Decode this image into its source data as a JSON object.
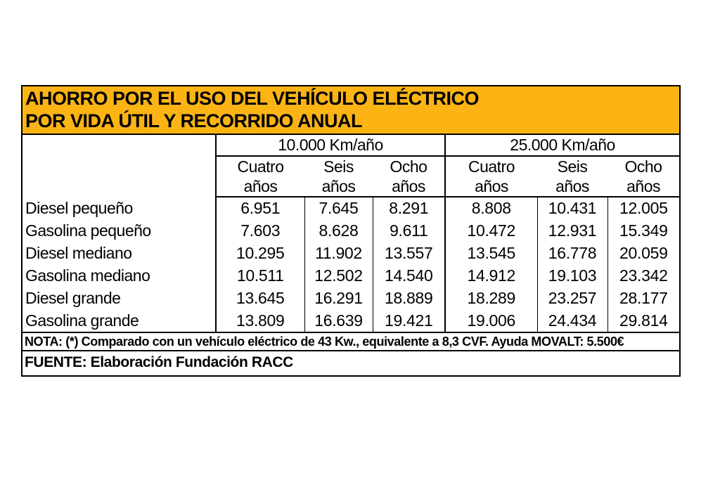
{
  "banner": {
    "color": "#FCB415",
    "line1": "AHORRO POR EL USO DEL VEHÍCULO ELÉCTRICO",
    "line2": "POR VIDA ÚTIL Y RECORRIDO ANUAL"
  },
  "header": {
    "groups": [
      {
        "label": "10.000 Km/año",
        "subcols": [
          {
            "line1": "Cuatro",
            "line2": "años"
          },
          {
            "line1": "Seis",
            "line2": "años"
          },
          {
            "line1": "Ocho",
            "line2": "años"
          }
        ]
      },
      {
        "label": "25.000 Km/año",
        "subcols": [
          {
            "line1": "Cuatro",
            "line2": "años"
          },
          {
            "line1": "Seis",
            "line2": "años"
          },
          {
            "line1": "Ocho",
            "line2": "años"
          }
        ]
      }
    ]
  },
  "chart_data": {
    "type": "table",
    "title": "AHORRO POR EL USO DEL VEHÍCULO ELÉCTRICO POR VIDA ÚTIL Y RECORRIDO ANUAL",
    "column_groups": [
      {
        "label": "10.000 Km/año",
        "columns": [
          "Cuatro años",
          "Seis años",
          "Ocho años"
        ]
      },
      {
        "label": "25.000 Km/año",
        "columns": [
          "Cuatro años",
          "Seis años",
          "Ocho años"
        ]
      }
    ],
    "rows": [
      {
        "label": "Diesel pequeño",
        "values": [
          "6.951",
          "7.645",
          "8.291",
          "8.808",
          "10.431",
          "12.005"
        ]
      },
      {
        "label": "Gasolina pequeño",
        "values": [
          "7.603",
          "8.628",
          "9.611",
          "10.472",
          "12.931",
          "15.349"
        ]
      },
      {
        "label": "Diesel mediano",
        "values": [
          "10.295",
          "11.902",
          "13.557",
          "13.545",
          "16.778",
          "20.059"
        ]
      },
      {
        "label": "Gasolina mediano",
        "values": [
          "10.511",
          "12.502",
          "14.540",
          "14.912",
          "19.103",
          "23.342"
        ]
      },
      {
        "label": "Diesel grande",
        "values": [
          "13.645",
          "16.291",
          "18.889",
          "18.289",
          "23.257",
          "28.177"
        ]
      },
      {
        "label": "Gasolina grande",
        "values": [
          "13.809",
          "16.639",
          "19.421",
          "19.006",
          "24.434",
          "29.814"
        ]
      }
    ],
    "footnote": "NOTA: (*) Comparado con un vehículo eléctrico de 43 Kw., equivalente a 8,3 CVF. Ayuda  MOVALT:  5.500€",
    "source": "FUENTE: Elaboración Fundación RACC"
  }
}
